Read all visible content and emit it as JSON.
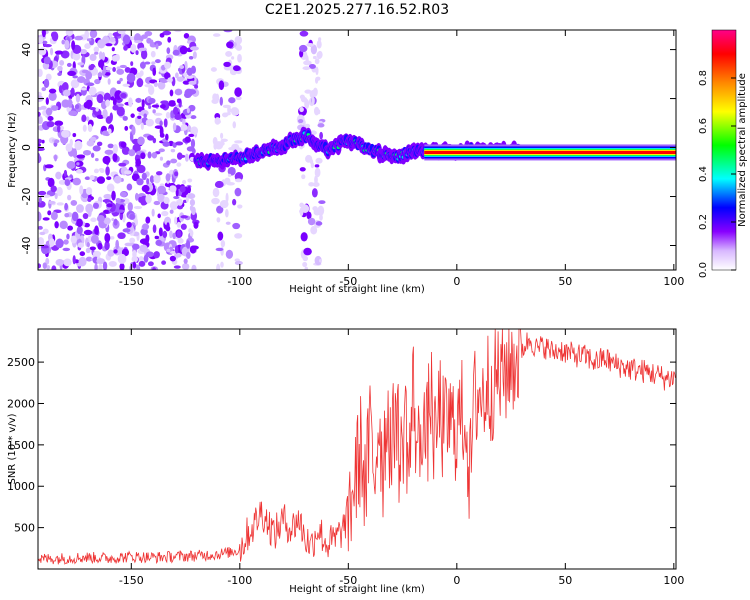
{
  "figure_title": "C2E1.2025.277.16.52.R03",
  "chart_data": [
    {
      "type": "heatmap",
      "title": "C2E1.2025.277.16.52.R03",
      "xlabel": "Height of straight line (km)",
      "ylabel": "Frequency (Hz)",
      "xlim": [
        -193,
        101
      ],
      "ylim": [
        -50,
        48
      ],
      "xticks": [
        -150,
        -100,
        -50,
        0,
        50,
        100
      ],
      "xtick_labels": [
        "-150",
        "-100",
        "-50",
        "0",
        "50",
        "100"
      ],
      "yticks": [
        -40,
        -20,
        0,
        20,
        40
      ],
      "ytick_labels": [
        "-40",
        "-20",
        "0",
        "20",
        "40"
      ],
      "colorbar": {
        "label": "Normalized spectral amplitude",
        "range": [
          0,
          1
        ],
        "ticks": [
          0.0,
          0.2,
          0.4,
          0.6,
          0.8
        ],
        "tick_labels": [
          "0.0",
          "0.2",
          "0.4",
          "0.6",
          "0.8"
        ],
        "colormap": [
          "#ffffff",
          "#8800ff",
          "#0000ff",
          "#00ffff",
          "#00ff00",
          "#ffff00",
          "#ff8800",
          "#ff0000",
          "#ff0088"
        ]
      },
      "noise_region_x": [
        -193,
        -120
      ],
      "sparse_noise_strips_x": [
        [
          -112,
          -100
        ],
        [
          -72,
          -62
        ]
      ],
      "carrier_trace": {
        "x": [
          -120,
          -110,
          -100,
          -90,
          -80,
          -70,
          -65,
          -60,
          -50,
          -40,
          -30,
          -25,
          -20,
          -10,
          0,
          10,
          20,
          30
        ],
        "freq_hz": [
          -6,
          -5,
          -4,
          -2,
          1,
          5,
          2,
          -1,
          3,
          -1,
          -4,
          -3,
          -2,
          -1,
          -1.5,
          -1,
          -1,
          -1
        ]
      },
      "strong_carrier": {
        "x": [
          -15,
          101
        ],
        "freq_hz": -2
      }
    },
    {
      "type": "line",
      "title": "",
      "xlabel": "Height of straight line (km)",
      "ylabel": "SNR (10 * v/v)",
      "xlim": [
        -193,
        101
      ],
      "ylim": [
        0,
        2900
      ],
      "xticks": [
        -150,
        -100,
        -50,
        0,
        50,
        100
      ],
      "xtick_labels": [
        "-150",
        "-100",
        "-50",
        "0",
        "50",
        "100"
      ],
      "yticks": [
        500,
        1000,
        1500,
        2000,
        2500
      ],
      "ytick_labels": [
        "500",
        "1000",
        "1500",
        "2000",
        "2500"
      ],
      "line_color": "#ee3333",
      "series": [
        {
          "name": "SNR",
          "x": [
            -193,
            -180,
            -170,
            -160,
            -150,
            -140,
            -130,
            -120,
            -115,
            -110,
            -105,
            -100,
            -97,
            -93,
            -90,
            -87,
            -84,
            -80,
            -76,
            -73,
            -70,
            -67,
            -64,
            -60,
            -56,
            -52,
            -49,
            -46,
            -44,
            -42,
            -40,
            -38,
            -36,
            -34,
            -32,
            -30,
            -28,
            -26,
            -24,
            -22,
            -20,
            -18,
            -16,
            -14,
            -12,
            -10,
            -8,
            -6,
            -4,
            -2,
            0,
            2,
            4,
            6,
            8,
            10,
            12,
            14,
            16,
            18,
            20,
            22,
            25,
            28,
            31,
            34,
            37,
            40,
            44,
            48,
            52,
            56,
            60,
            64,
            68,
            72,
            76,
            80,
            84,
            88,
            92,
            96,
            101
          ],
          "y": [
            120,
            130,
            140,
            130,
            150,
            140,
            150,
            160,
            170,
            180,
            200,
            230,
            400,
            550,
            700,
            560,
            420,
            600,
            480,
            620,
            380,
            280,
            500,
            300,
            350,
            500,
            800,
            1200,
            1500,
            900,
            1700,
            1100,
            1850,
            1250,
            2000,
            1300,
            2100,
            1150,
            1950,
            1200,
            2200,
            1300,
            1900,
            1500,
            2150,
            1400,
            2000,
            1600,
            1800,
            1700,
            1750,
            1850,
            1900,
            1050,
            2000,
            2150,
            2050,
            2250,
            2200,
            2350,
            2300,
            2400,
            2500,
            2550,
            2700,
            2780,
            2650,
            2700,
            2620,
            2650,
            2600,
            2580,
            2560,
            2500,
            2550,
            2480,
            2450,
            2420,
            2400,
            2380,
            2350,
            2300,
            2320
          ]
        }
      ]
    }
  ]
}
